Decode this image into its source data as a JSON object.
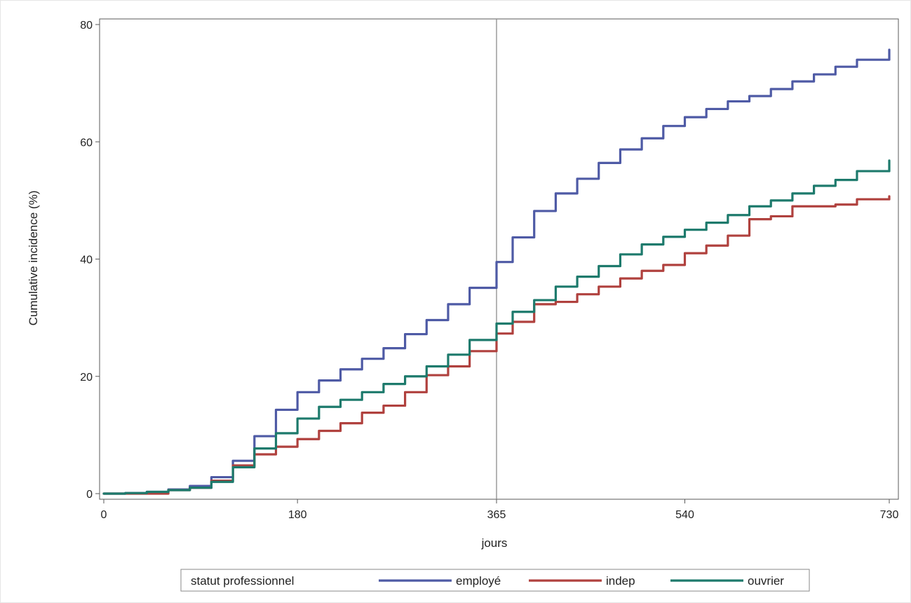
{
  "chart_data": {
    "type": "line",
    "step": true,
    "xlabel": "jours",
    "ylabel": "Cumulative incidence (%)",
    "xlim": [
      0,
      730
    ],
    "ylim": [
      0,
      80
    ],
    "xticks": [
      0,
      180,
      365,
      540,
      730
    ],
    "yticks": [
      0,
      20,
      40,
      60,
      80
    ],
    "reference_line_x": 365,
    "legend_title": "statut professionnel",
    "legend_position": "bottom",
    "series": [
      {
        "name": "employé",
        "color": "#4e5aa5",
        "x": [
          0,
          20,
          40,
          60,
          80,
          100,
          120,
          140,
          160,
          180,
          200,
          220,
          240,
          260,
          280,
          300,
          320,
          340,
          365,
          380,
          400,
          420,
          440,
          460,
          480,
          500,
          520,
          540,
          560,
          580,
          600,
          620,
          640,
          660,
          680,
          700,
          730
        ],
        "y": [
          0,
          0.1,
          0.3,
          0.7,
          1.3,
          2.8,
          5.6,
          9.8,
          14.3,
          17.3,
          19.3,
          21.2,
          23.0,
          24.8,
          27.2,
          29.6,
          32.3,
          35.1,
          39.5,
          43.7,
          48.2,
          51.2,
          53.7,
          56.4,
          58.7,
          60.6,
          62.7,
          64.2,
          65.6,
          66.9,
          67.8,
          69.0,
          70.3,
          71.5,
          72.8,
          74.0,
          75.7
        ]
      },
      {
        "name": "indep",
        "color": "#b0413e",
        "x": [
          0,
          20,
          40,
          60,
          80,
          100,
          120,
          140,
          160,
          180,
          200,
          220,
          240,
          260,
          280,
          300,
          320,
          340,
          365,
          380,
          400,
          420,
          440,
          460,
          480,
          500,
          520,
          540,
          560,
          580,
          600,
          620,
          640,
          660,
          680,
          700,
          730
        ],
        "y": [
          0,
          0,
          0,
          0.6,
          1.0,
          2.2,
          4.8,
          6.7,
          8.0,
          9.3,
          10.7,
          12.0,
          13.8,
          15.0,
          17.3,
          20.2,
          21.7,
          24.3,
          27.3,
          29.3,
          32.3,
          32.7,
          34.0,
          35.3,
          36.7,
          38.0,
          39.0,
          41.0,
          42.3,
          44.0,
          46.8,
          47.3,
          49.0,
          49.0,
          49.3,
          50.2,
          50.7
        ]
      },
      {
        "name": "ouvrier",
        "color": "#1d7a6c",
        "x": [
          0,
          20,
          40,
          60,
          80,
          100,
          120,
          140,
          160,
          180,
          200,
          220,
          240,
          260,
          280,
          300,
          320,
          340,
          365,
          380,
          400,
          420,
          440,
          460,
          480,
          500,
          520,
          540,
          560,
          580,
          600,
          620,
          640,
          660,
          680,
          700,
          730
        ],
        "y": [
          0,
          0.1,
          0.3,
          0.6,
          1.0,
          2.0,
          4.5,
          7.7,
          10.3,
          12.8,
          14.8,
          16.0,
          17.3,
          18.7,
          20.0,
          21.7,
          23.7,
          26.2,
          29.0,
          31.0,
          33.0,
          35.3,
          37.0,
          38.8,
          40.8,
          42.5,
          43.8,
          45.0,
          46.2,
          47.5,
          49.0,
          50.0,
          51.2,
          52.5,
          53.5,
          55.0,
          56.8
        ]
      }
    ]
  }
}
